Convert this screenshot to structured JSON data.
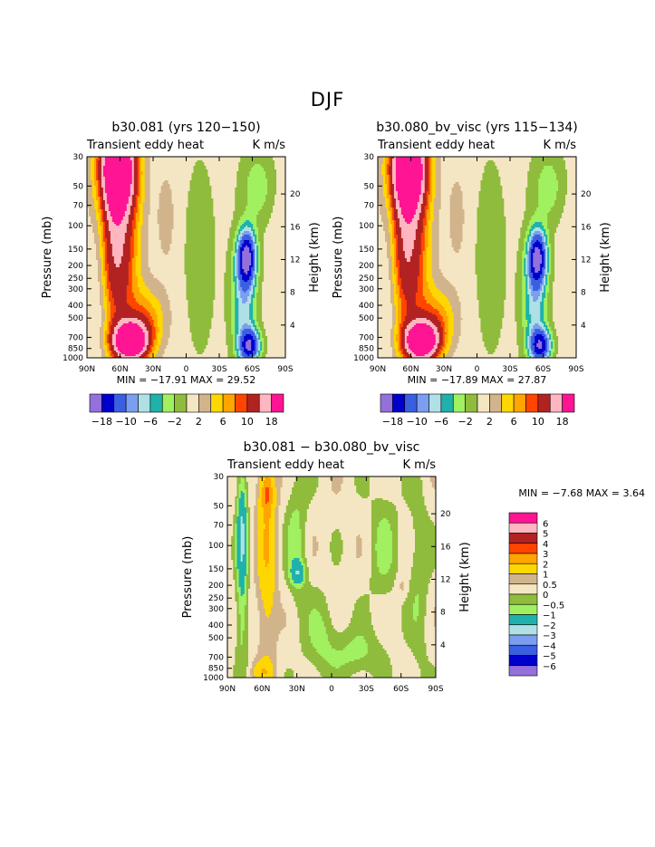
{
  "page": {
    "title": "DJF"
  },
  "colors": {
    "-7": "#9370db",
    "-6": "#0000cd",
    "-5": "#3a5fe0",
    "-4": "#7b9ef0",
    "-3": "#afe0e6",
    "-2": "#20b2aa",
    "-1": "#a0f060",
    "0": "#8fbc3c",
    "1": "#f5e6c3",
    "2": "#d2b48c",
    "3": "#ffd700",
    "4": "#ffa500",
    "5": "#ff4500",
    "6": "#b22222",
    "7": "#ffb6c1",
    "8": "#ff1493"
  },
  "chart_data": [
    {
      "id": "p1",
      "type": "contour",
      "title": "b30.081 (yrs 120−150)",
      "subtitle_left": "Transient eddy heat",
      "subtitle_right": "K m/s",
      "ylabel": "Pressure (mb)",
      "ylabel_right": "Height (km)",
      "x_ticks": [
        "90N",
        "60N",
        "30N",
        "0",
        "30S",
        "60S",
        "90S"
      ],
      "y_ticks": [
        "30",
        "50",
        "70",
        "100",
        "150",
        "200",
        "250",
        "300",
        "400",
        "500",
        "700",
        "850",
        "1000"
      ],
      "y_ticks_right": [
        "20",
        "16",
        "12",
        "8",
        "4"
      ],
      "min_label": "MIN =",
      "min": "−17.91",
      "max_label": "MAX =",
      "max": "29.52",
      "xlim": [
        90,
        -90
      ],
      "ylim": [
        1000,
        30
      ],
      "colorbar": {
        "orientation": "horizontal",
        "labels": [
          "−18",
          "−10",
          "−6",
          "−2",
          "2",
          "6",
          "10",
          "18"
        ]
      }
    },
    {
      "id": "p2",
      "type": "contour",
      "title": "b30.080_bv_visc (yrs 115−134)",
      "subtitle_left": "Transient eddy heat",
      "subtitle_right": "K m/s",
      "ylabel": "Pressure (mb)",
      "ylabel_right": "Height (km)",
      "x_ticks": [
        "90N",
        "60N",
        "30N",
        "0",
        "30S",
        "60S",
        "90S"
      ],
      "y_ticks": [
        "30",
        "50",
        "70",
        "100",
        "150",
        "200",
        "250",
        "300",
        "400",
        "500",
        "700",
        "850",
        "1000"
      ],
      "y_ticks_right": [
        "20",
        "16",
        "12",
        "8",
        "4"
      ],
      "min_label": "MIN =",
      "min": "−17.89",
      "max_label": "MAX =",
      "max": "27.87",
      "xlim": [
        90,
        -90
      ],
      "ylim": [
        1000,
        30
      ],
      "colorbar": {
        "orientation": "horizontal",
        "labels": [
          "−18",
          "−10",
          "−6",
          "−2",
          "2",
          "6",
          "10",
          "18"
        ]
      }
    },
    {
      "id": "p3",
      "type": "contour",
      "title": "b30.081 − b30.080_bv_visc",
      "subtitle_left": "Transient eddy heat",
      "subtitle_right": "K m/s",
      "ylabel": "Pressure (mb)",
      "ylabel_right": "Height (km)",
      "x_ticks": [
        "90N",
        "60N",
        "30N",
        "0",
        "30S",
        "60S",
        "90S"
      ],
      "y_ticks": [
        "30",
        "50",
        "70",
        "100",
        "150",
        "200",
        "250",
        "300",
        "400",
        "500",
        "700",
        "850",
        "1000"
      ],
      "y_ticks_right": [
        "20",
        "16",
        "12",
        "8",
        "4"
      ],
      "min_label": "MIN =",
      "min": "−7.68",
      "max_label": "MAX =",
      "max": "3.64",
      "xlim": [
        90,
        -90
      ],
      "ylim": [
        1000,
        30
      ],
      "colorbar": {
        "orientation": "vertical",
        "labels": [
          "6",
          "5",
          "4",
          "3",
          "2",
          "1",
          "0.5",
          "0",
          "−0.5",
          "−1",
          "−2",
          "−3",
          "−4",
          "−5",
          "−6"
        ]
      }
    }
  ]
}
